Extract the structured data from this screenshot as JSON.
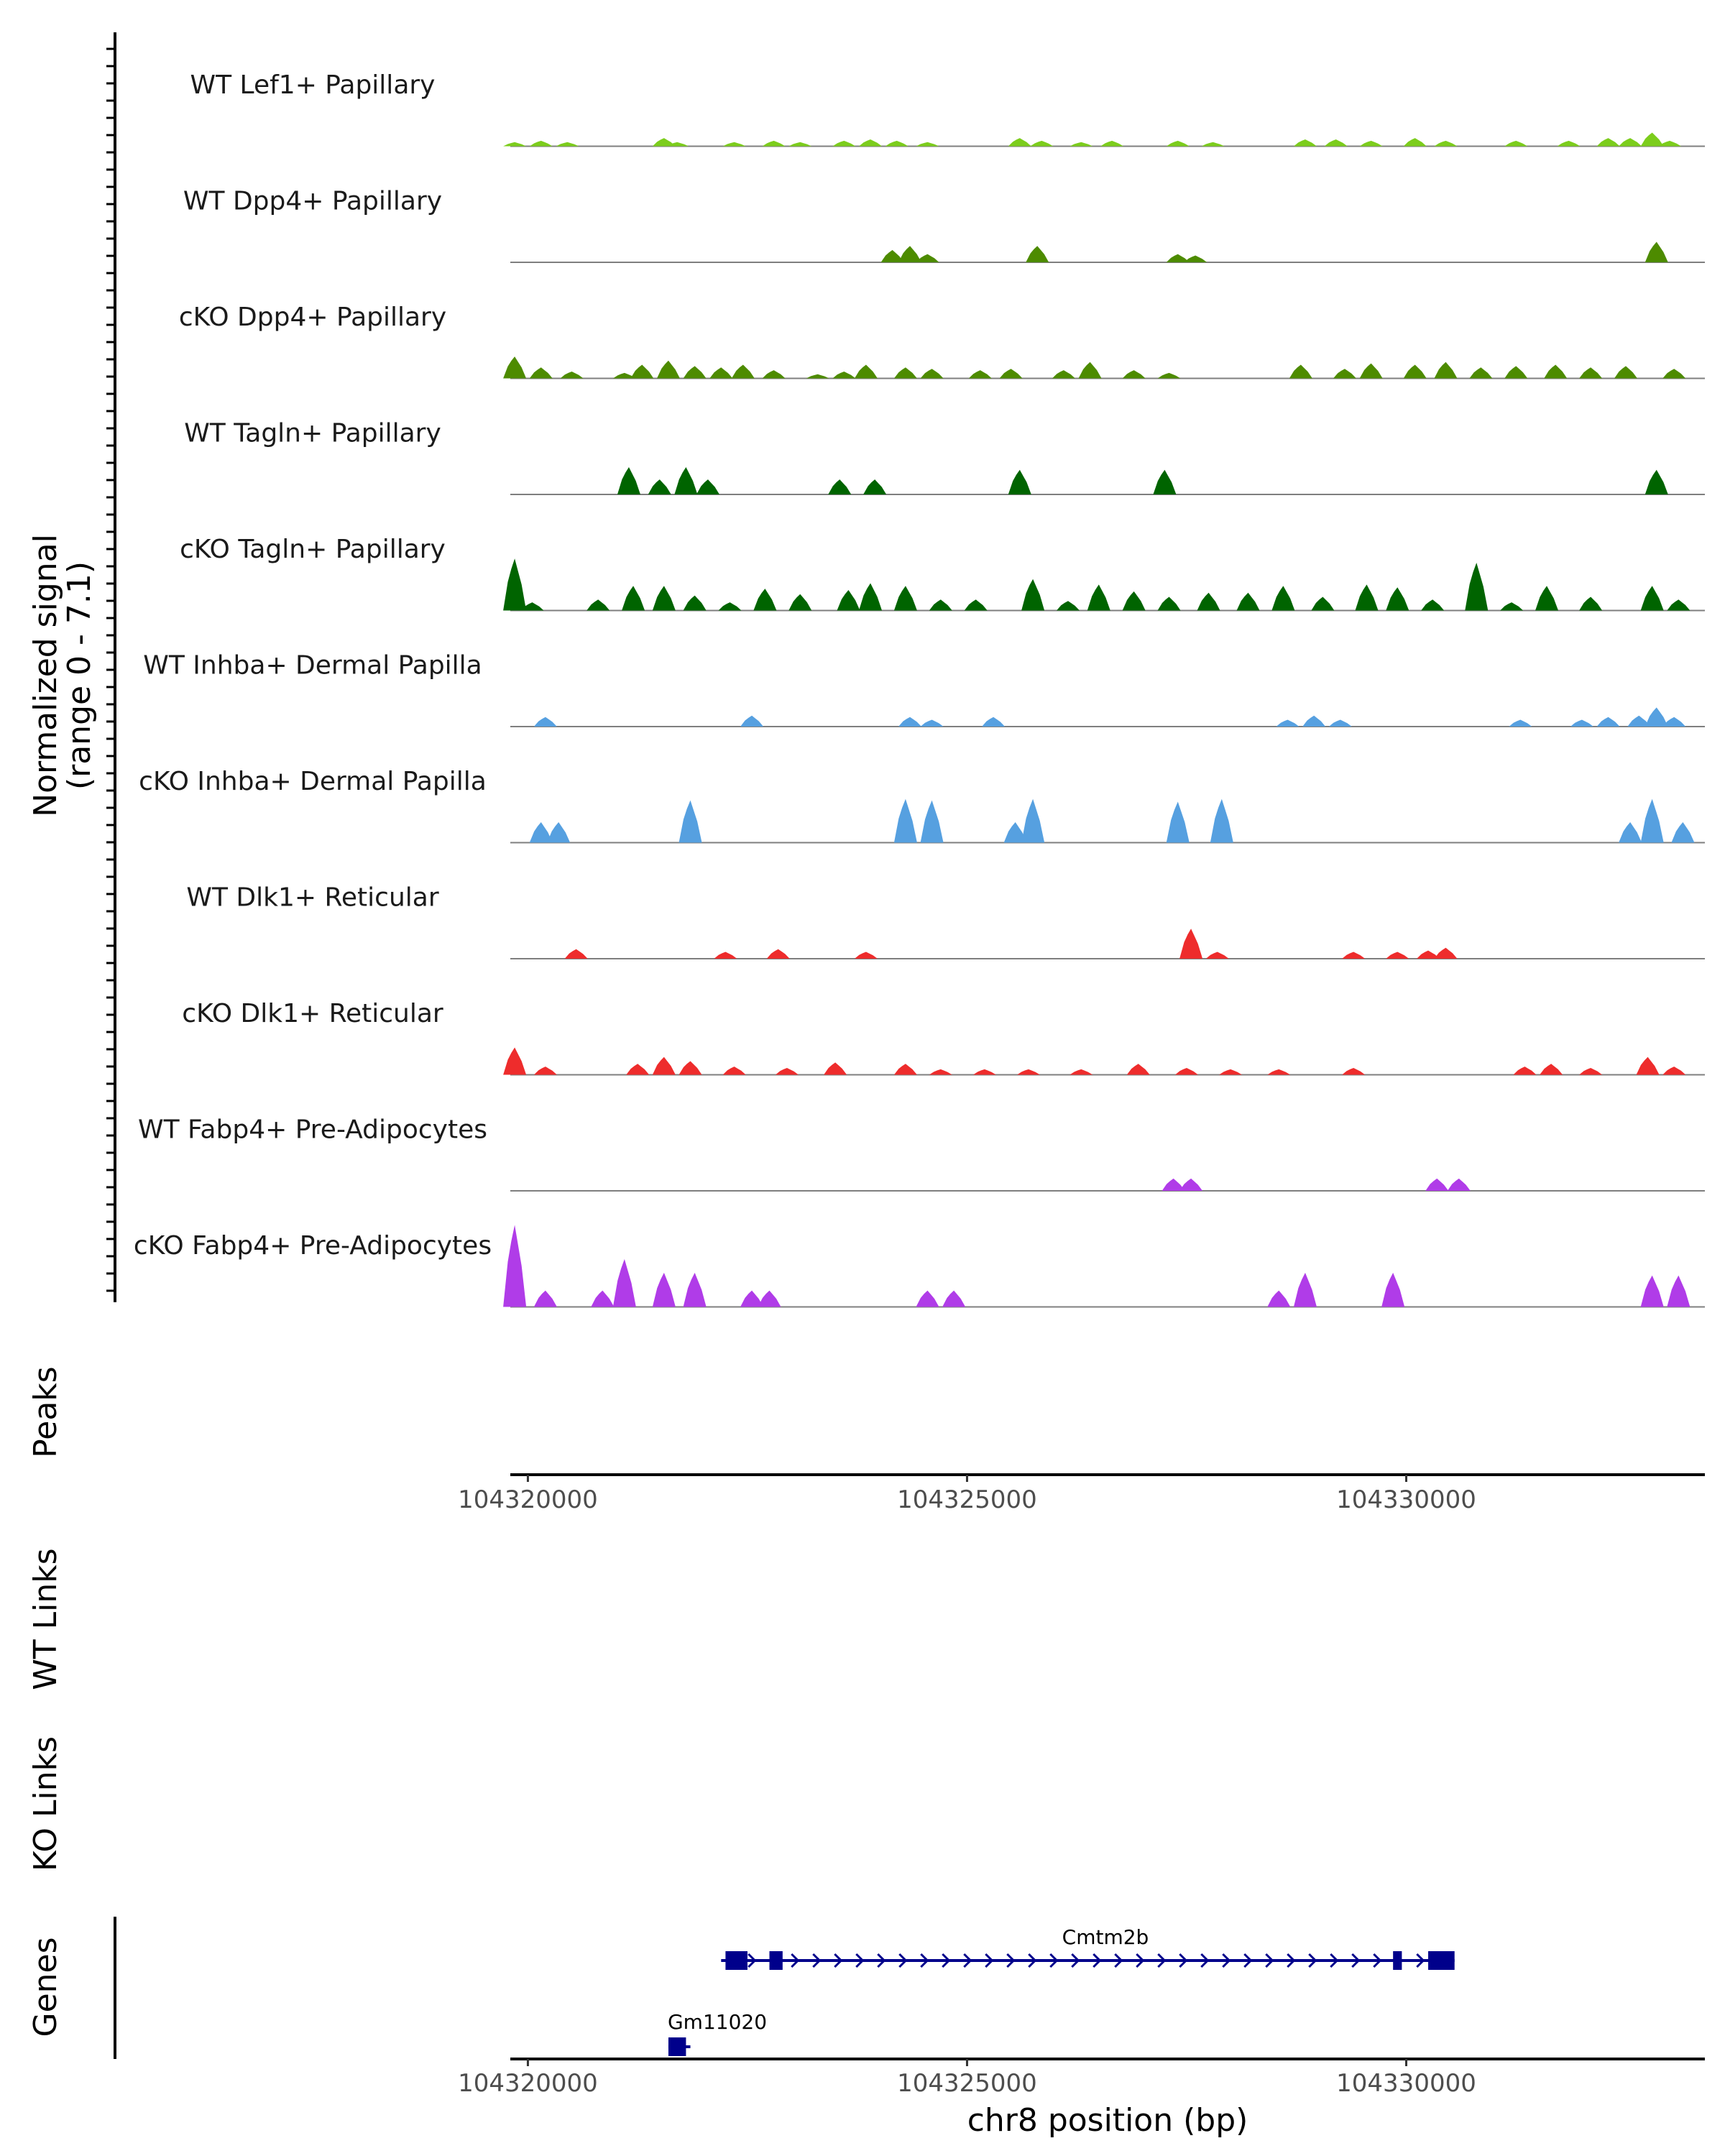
{
  "chart_data": {
    "type": "area",
    "title": "",
    "chromosome": "chr8",
    "xlim": [
      104319800,
      104333400
    ],
    "xlabel": "chr8 position (bp)",
    "x_ticks": [
      104320000,
      104325000,
      104330000
    ],
    "x_tick_labels": [
      "104320000",
      "104325000",
      "104330000"
    ],
    "coverage_ylabel_line1": "Normalized signal",
    "coverage_ylabel_line2": "(range 0 - 7.1)",
    "y_range": [
      0,
      7.1
    ],
    "coverage_tracks": [
      {
        "name": "WT Lef1+ Papillary",
        "color": "#7ccd1c",
        "peaks": [
          [
            104319850,
            0.3
          ],
          [
            104320150,
            0.4
          ],
          [
            104320450,
            0.3
          ],
          [
            104321550,
            0.6
          ],
          [
            104321700,
            0.3
          ],
          [
            104322350,
            0.3
          ],
          [
            104322800,
            0.4
          ],
          [
            104323100,
            0.3
          ],
          [
            104323600,
            0.4
          ],
          [
            104323900,
            0.5
          ],
          [
            104324200,
            0.4
          ],
          [
            104324550,
            0.3
          ],
          [
            104325600,
            0.6
          ],
          [
            104325850,
            0.4
          ],
          [
            104326300,
            0.3
          ],
          [
            104326650,
            0.4
          ],
          [
            104327400,
            0.4
          ],
          [
            104327800,
            0.3
          ],
          [
            104328850,
            0.5
          ],
          [
            104329200,
            0.5
          ],
          [
            104329600,
            0.4
          ],
          [
            104330100,
            0.6
          ],
          [
            104330450,
            0.4
          ],
          [
            104331250,
            0.4
          ],
          [
            104331850,
            0.4
          ],
          [
            104332300,
            0.6
          ],
          [
            104332550,
            0.6
          ],
          [
            104332800,
            1.0
          ],
          [
            104333000,
            0.4
          ]
        ]
      },
      {
        "name": "WT Dpp4+ Papillary",
        "color": "#4d8b00",
        "peaks": [
          [
            104324150,
            0.9
          ],
          [
            104324350,
            1.2
          ],
          [
            104324550,
            0.6
          ],
          [
            104325800,
            1.2
          ],
          [
            104327400,
            0.6
          ],
          [
            104327600,
            0.5
          ],
          [
            104332850,
            1.5
          ]
        ]
      },
      {
        "name": "cKO Dpp4+ Papillary",
        "color": "#4d8b00",
        "peaks": [
          [
            104319850,
            1.6
          ],
          [
            104320150,
            0.8
          ],
          [
            104320500,
            0.5
          ],
          [
            104321100,
            0.4
          ],
          [
            104321300,
            1.0
          ],
          [
            104321600,
            1.3
          ],
          [
            104321900,
            0.9
          ],
          [
            104322200,
            0.8
          ],
          [
            104322450,
            1.0
          ],
          [
            104322800,
            0.6
          ],
          [
            104323300,
            0.3
          ],
          [
            104323600,
            0.5
          ],
          [
            104323850,
            1.0
          ],
          [
            104324300,
            0.8
          ],
          [
            104324600,
            0.7
          ],
          [
            104325150,
            0.6
          ],
          [
            104325500,
            0.7
          ],
          [
            104326100,
            0.6
          ],
          [
            104326400,
            1.2
          ],
          [
            104326900,
            0.6
          ],
          [
            104327300,
            0.4
          ],
          [
            104328800,
            1.0
          ],
          [
            104329300,
            0.7
          ],
          [
            104329600,
            1.1
          ],
          [
            104330100,
            1.0
          ],
          [
            104330450,
            1.2
          ],
          [
            104330850,
            0.8
          ],
          [
            104331250,
            0.9
          ],
          [
            104331700,
            1.0
          ],
          [
            104332100,
            0.8
          ],
          [
            104332500,
            0.9
          ],
          [
            104333050,
            0.7
          ]
        ]
      },
      {
        "name": "WT Tagln+ Papillary",
        "color": "#006400",
        "peaks": [
          [
            104321150,
            2.0
          ],
          [
            104321500,
            1.1
          ],
          [
            104321800,
            2.0
          ],
          [
            104322050,
            1.1
          ],
          [
            104323550,
            1.1
          ],
          [
            104323950,
            1.1
          ],
          [
            104325600,
            1.8
          ],
          [
            104327250,
            1.8
          ],
          [
            104332850,
            1.8
          ]
        ]
      },
      {
        "name": "cKO Tagln+ Papillary",
        "color": "#006400",
        "peaks": [
          [
            104319850,
            3.8
          ],
          [
            104320050,
            0.6
          ],
          [
            104320800,
            0.8
          ],
          [
            104321200,
            1.8
          ],
          [
            104321550,
            1.8
          ],
          [
            104321900,
            1.1
          ],
          [
            104322300,
            0.6
          ],
          [
            104322700,
            1.6
          ],
          [
            104323100,
            1.2
          ],
          [
            104323650,
            1.5
          ],
          [
            104323900,
            2.0
          ],
          [
            104324300,
            1.8
          ],
          [
            104324700,
            0.8
          ],
          [
            104325100,
            0.8
          ],
          [
            104325750,
            2.3
          ],
          [
            104326150,
            0.7
          ],
          [
            104326500,
            1.9
          ],
          [
            104326900,
            1.4
          ],
          [
            104327300,
            1.0
          ],
          [
            104327750,
            1.3
          ],
          [
            104328200,
            1.3
          ],
          [
            104328600,
            1.8
          ],
          [
            104329050,
            1.0
          ],
          [
            104329550,
            1.9
          ],
          [
            104329900,
            1.7
          ],
          [
            104330300,
            0.8
          ],
          [
            104330800,
            3.5
          ],
          [
            104331200,
            0.6
          ],
          [
            104331600,
            1.8
          ],
          [
            104332100,
            1.0
          ],
          [
            104332800,
            1.8
          ],
          [
            104333100,
            0.8
          ]
        ]
      },
      {
        "name": "WT Inhba+ Dermal Papilla",
        "color": "#56a0e0",
        "peaks": [
          [
            104320200,
            0.7
          ],
          [
            104322550,
            0.8
          ],
          [
            104324350,
            0.7
          ],
          [
            104324600,
            0.5
          ],
          [
            104325300,
            0.7
          ],
          [
            104328650,
            0.5
          ],
          [
            104328950,
            0.8
          ],
          [
            104329250,
            0.5
          ],
          [
            104331300,
            0.5
          ],
          [
            104332000,
            0.5
          ],
          [
            104332300,
            0.7
          ],
          [
            104332650,
            0.8
          ],
          [
            104332850,
            1.4
          ],
          [
            104333050,
            0.7
          ]
        ]
      },
      {
        "name": "cKO Inhba+ Dermal Papilla",
        "color": "#56a0e0",
        "peaks": [
          [
            104320150,
            1.5
          ],
          [
            104320350,
            1.5
          ],
          [
            104321850,
            3.1
          ],
          [
            104324300,
            3.2
          ],
          [
            104324600,
            3.1
          ],
          [
            104325550,
            1.5
          ],
          [
            104325750,
            3.2
          ],
          [
            104327400,
            3.0
          ],
          [
            104327900,
            3.2
          ],
          [
            104332550,
            1.5
          ],
          [
            104332800,
            3.2
          ],
          [
            104333150,
            1.5
          ]
        ]
      },
      {
        "name": "WT Dlk1+ Reticular",
        "color": "#ee2c2c",
        "peaks": [
          [
            104320550,
            0.7
          ],
          [
            104322250,
            0.5
          ],
          [
            104322850,
            0.7
          ],
          [
            104323850,
            0.5
          ],
          [
            104327550,
            2.2
          ],
          [
            104327850,
            0.5
          ],
          [
            104329400,
            0.5
          ],
          [
            104329900,
            0.5
          ],
          [
            104330250,
            0.6
          ],
          [
            104330450,
            0.8
          ]
        ]
      },
      {
        "name": "cKO Dlk1+ Reticular",
        "color": "#ee2c2c",
        "peaks": [
          [
            104319850,
            2.0
          ],
          [
            104320200,
            0.6
          ],
          [
            104321250,
            0.8
          ],
          [
            104321550,
            1.3
          ],
          [
            104321850,
            1.0
          ],
          [
            104322350,
            0.6
          ],
          [
            104322950,
            0.5
          ],
          [
            104323500,
            0.9
          ],
          [
            104324300,
            0.8
          ],
          [
            104324700,
            0.4
          ],
          [
            104325200,
            0.4
          ],
          [
            104325700,
            0.4
          ],
          [
            104326300,
            0.4
          ],
          [
            104326950,
            0.8
          ],
          [
            104327500,
            0.5
          ],
          [
            104328000,
            0.4
          ],
          [
            104328550,
            0.4
          ],
          [
            104329400,
            0.5
          ],
          [
            104331350,
            0.6
          ],
          [
            104331650,
            0.8
          ],
          [
            104332100,
            0.5
          ],
          [
            104332750,
            1.3
          ],
          [
            104333050,
            0.6
          ]
        ]
      },
      {
        "name": "WT Fabp4+ Pre-Adipocytes",
        "color": "#b03ce8",
        "peaks": [
          [
            104327350,
            0.9
          ],
          [
            104327550,
            0.9
          ],
          [
            104330350,
            0.9
          ],
          [
            104330600,
            0.9
          ]
        ]
      },
      {
        "name": "cKO Fabp4+ Pre-Adipocytes",
        "color": "#b03ce8",
        "peaks": [
          [
            104319850,
            6.0
          ],
          [
            104320200,
            1.2
          ],
          [
            104320850,
            1.2
          ],
          [
            104321100,
            3.5
          ],
          [
            104321550,
            2.5
          ],
          [
            104321900,
            2.5
          ],
          [
            104322550,
            1.2
          ],
          [
            104322750,
            1.2
          ],
          [
            104324550,
            1.2
          ],
          [
            104324850,
            1.2
          ],
          [
            104328550,
            1.2
          ],
          [
            104328850,
            2.5
          ],
          [
            104329850,
            2.5
          ],
          [
            104332800,
            2.3
          ],
          [
            104333100,
            2.3
          ]
        ]
      }
    ],
    "peaks_label": "Peaks",
    "wt_links_label": "WT Links",
    "ko_links_label": "KO Links",
    "genes_label": "Genes",
    "genes": [
      {
        "name": "Cmtm2b",
        "start": 104322200,
        "end": 104330550,
        "strand": "+",
        "color": "#00008b",
        "exons": [
          [
            104322250,
            104322500
          ],
          [
            104322750,
            104322900
          ],
          [
            104329850,
            104329950
          ],
          [
            104330250,
            104330550
          ]
        ]
      },
      {
        "name": "Gm11020",
        "start": 104321600,
        "end": 104321850,
        "strand": "+",
        "color": "#00008b",
        "exons": [
          [
            104321600,
            104321800
          ]
        ]
      }
    ]
  }
}
